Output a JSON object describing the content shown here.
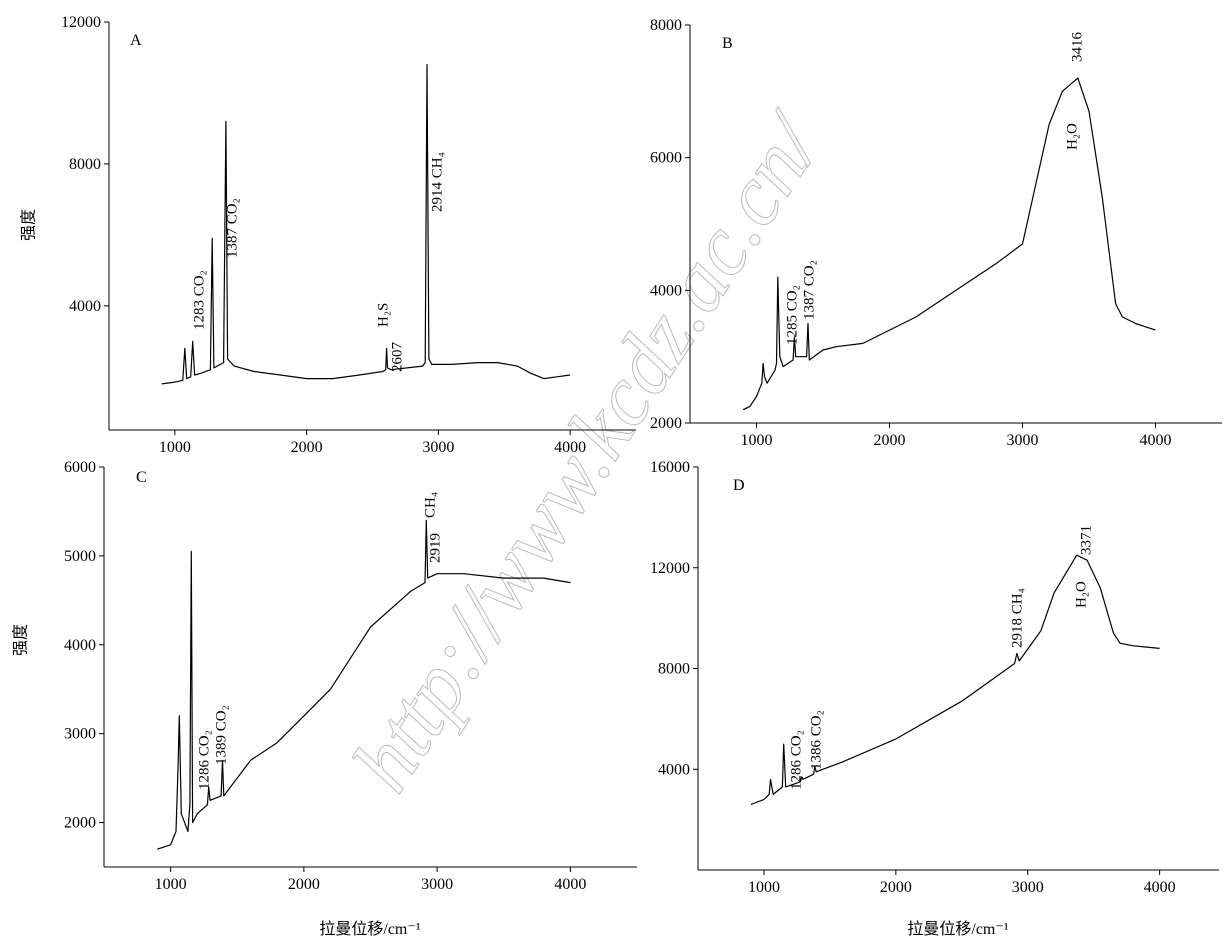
{
  "chart_data": [
    {
      "type": "line",
      "label": "A",
      "ylabel": "强度",
      "x": [
        900,
        1000,
        1060,
        1075,
        1090,
        1120,
        1135,
        1150,
        1200,
        1270,
        1283,
        1296,
        1370,
        1387,
        1400,
        1450,
        1600,
        1800,
        2000,
        2200,
        2400,
        2580,
        2600,
        2607,
        2614,
        2640,
        2880,
        2900,
        2914,
        2928,
        2950,
        3100,
        3300,
        3450,
        3600,
        3700,
        3800,
        3900,
        4000
      ],
      "series": [
        {
          "color": "#000000",
          "values": [
            1800,
            1850,
            1900,
            2800,
            1950,
            2000,
            3000,
            2050,
            2100,
            2200,
            5900,
            2250,
            2400,
            9200,
            2500,
            2300,
            2150,
            2050,
            1950,
            1950,
            2050,
            2150,
            2200,
            2800,
            2250,
            2200,
            2300,
            2400,
            10800,
            2500,
            2350,
            2350,
            2400,
            2400,
            2300,
            2100,
            1950,
            2000,
            2050
          ]
        }
      ],
      "xlim": [
        500,
        4500
      ],
      "ylim": [
        500,
        12000
      ],
      "xticks": [
        1000,
        2000,
        3000,
        4000
      ],
      "yticks": [
        4000,
        8000,
        12000
      ],
      "annotations": [
        "1283 CO₂",
        "1387 CO₂",
        "H₂S",
        "2607",
        "2914 CH₄"
      ]
    },
    {
      "type": "line",
      "label": "B",
      "x": [
        900,
        950,
        1000,
        1040,
        1050,
        1060,
        1080,
        1140,
        1150,
        1160,
        1175,
        1200,
        1275,
        1285,
        1295,
        1377,
        1387,
        1397,
        1500,
        1600,
        1800,
        2000,
        2200,
        2500,
        2800,
        3000,
        3100,
        3200,
        3300,
        3416,
        3500,
        3600,
        3700,
        3750,
        3850,
        4000
      ],
      "series": [
        {
          "color": "#000000",
          "values": [
            2200,
            2250,
            2400,
            2600,
            2900,
            2700,
            2600,
            2800,
            2900,
            4200,
            3000,
            2850,
            2950,
            3300,
            3000,
            3000,
            3500,
            2950,
            3100,
            3150,
            3200,
            3400,
            3600,
            4000,
            4400,
            4700,
            5600,
            6500,
            7000,
            7200,
            6700,
            5400,
            3800,
            3600,
            3500,
            3400
          ]
        }
      ],
      "xlim": [
        500,
        4500
      ],
      "ylim": [
        2000,
        8000
      ],
      "xticks": [
        1000,
        2000,
        3000,
        4000
      ],
      "yticks": [
        2000,
        4000,
        6000,
        8000
      ],
      "annotations": [
        "1285 CO₂",
        "1387 CO₂",
        "3416",
        "H₂O"
      ]
    },
    {
      "type": "line",
      "label": "C",
      "ylabel": "强度",
      "xlabel": "拉曼位移/cm⁻¹",
      "x": [
        900,
        1000,
        1040,
        1055,
        1065,
        1080,
        1130,
        1145,
        1155,
        1165,
        1200,
        1276,
        1286,
        1296,
        1379,
        1389,
        1399,
        1600,
        1800,
        2000,
        2200,
        2500,
        2800,
        2909,
        2919,
        2929,
        3000,
        3200,
        3500,
        3800,
        4000
      ],
      "series": [
        {
          "color": "#000000",
          "values": [
            1700,
            1750,
            1900,
            2600,
            3200,
            2100,
            1900,
            2200,
            5050,
            2000,
            2100,
            2200,
            2400,
            2250,
            2300,
            2700,
            2300,
            2700,
            2900,
            3200,
            3500,
            4200,
            4600,
            4700,
            5400,
            4750,
            4800,
            4800,
            4750,
            4750,
            4700
          ]
        }
      ],
      "xlim": [
        500,
        4500
      ],
      "ylim": [
        1500,
        6000
      ],
      "xticks": [
        1000,
        2000,
        3000,
        4000
      ],
      "yticks": [
        2000,
        3000,
        4000,
        5000,
        6000
      ],
      "annotations": [
        "1286 CO₂",
        "1389 CO₂",
        "2919",
        "CH₄"
      ]
    },
    {
      "type": "line",
      "label": "D",
      "xlabel": "拉曼位移/cm⁻¹",
      "x": [
        900,
        1000,
        1040,
        1050,
        1070,
        1140,
        1150,
        1165,
        1276,
        1286,
        1296,
        1376,
        1386,
        1396,
        1600,
        2000,
        2500,
        2900,
        2918,
        2936,
        3100,
        3200,
        3371,
        3450,
        3550,
        3650,
        3700,
        3800,
        4000
      ],
      "series": [
        {
          "color": "#000000",
          "values": [
            2600,
            2800,
            3000,
            3600,
            3000,
            3300,
            5000,
            3300,
            3500,
            3700,
            3600,
            3800,
            4100,
            3900,
            4300,
            5200,
            6700,
            8200,
            8600,
            8300,
            9500,
            11000,
            12500,
            12300,
            11200,
            9400,
            9000,
            8900,
            8800
          ]
        }
      ],
      "xlim": [
        500,
        4450
      ],
      "ylim": [
        0,
        16000
      ],
      "xticks": [
        1000,
        2000,
        3000,
        4000
      ],
      "yticks": [
        4000,
        8000,
        12000,
        16000
      ],
      "annotations": [
        "1286 CO₂",
        "1386 CO₂",
        "2918 CH₄",
        "3371",
        "H₂O"
      ]
    }
  ],
  "watermark": "http://www.kcdz.ac.cn/"
}
